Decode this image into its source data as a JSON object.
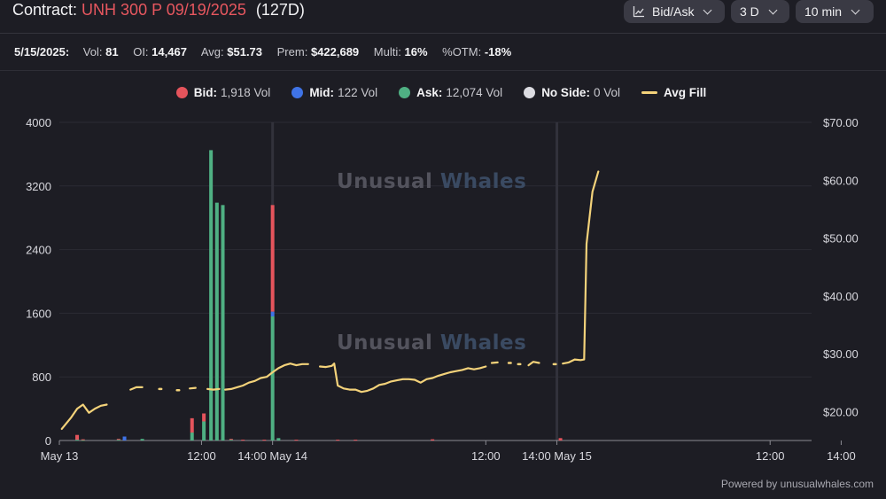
{
  "header": {
    "contract_label": "Contract:",
    "contract": "UNH 300 P 09/19/2025",
    "days": "(127D)",
    "controls": [
      {
        "label": "Bid/Ask",
        "icon": "chart-icon"
      },
      {
        "label": "3 D",
        "icon": ""
      },
      {
        "label": "10 min",
        "icon": ""
      }
    ]
  },
  "stats": {
    "date": "5/15/2025:",
    "items": [
      {
        "label": "Vol:",
        "value": "81"
      },
      {
        "label": "OI:",
        "value": "14,467"
      },
      {
        "label": "Avg:",
        "value": "$51.73"
      },
      {
        "label": "Prem:",
        "value": "$422,689"
      },
      {
        "label": "Multi:",
        "value": "16%"
      },
      {
        "label": "%OTM:",
        "value": "-18%"
      }
    ]
  },
  "legend": [
    {
      "name": "Bid:",
      "value": "1,918 Vol",
      "color": "#e5545c",
      "shape": "dot"
    },
    {
      "name": "Mid:",
      "value": "122 Vol",
      "color": "#3f73e6",
      "shape": "dot"
    },
    {
      "name": "Ask:",
      "value": "12,074 Vol",
      "color": "#4fb083",
      "shape": "dot"
    },
    {
      "name": "No Side:",
      "value": "0 Vol",
      "color": "#dcdce2",
      "shape": "dot"
    },
    {
      "name": "Avg Fill",
      "value": "",
      "color": "#f3d27a",
      "shape": "line"
    }
  ],
  "watermark": {
    "word1": "Unusual",
    "word2": "Whales"
  },
  "footer": "Powered by unusualwhales.com",
  "chart_data": {
    "type": "bar",
    "colors": {
      "bid": "#e5545c",
      "mid": "#3f73e6",
      "ask": "#4fb083",
      "fill": "#f3d27a"
    },
    "x_range_hours": [
      0,
      63.5
    ],
    "x_ticks": [
      {
        "h": 0,
        "label": "May 13"
      },
      {
        "h": 12,
        "label": "12:00"
      },
      {
        "h": 18,
        "label": "14:00 May 14"
      },
      {
        "h": 36,
        "label": "12:00"
      },
      {
        "h": 42,
        "label": "14:00 May 15"
      },
      {
        "h": 60,
        "label": "12:00"
      },
      {
        "h": 66,
        "label": "14:00"
      }
    ],
    "y_left": {
      "min": 0,
      "max": 4000,
      "ticks": [
        0,
        800,
        1600,
        2400,
        3200,
        4000
      ]
    },
    "y_right": {
      "min": 15,
      "max": 70,
      "ticks": [
        20,
        30,
        40,
        50,
        60,
        70
      ],
      "tick_labels": [
        "$20.00",
        "$30.00",
        "$40.00",
        "$50.00",
        "$60.00",
        "$70.00"
      ]
    },
    "day_markers_h": [
      18,
      42
    ],
    "bars": [
      {
        "h": 1.5,
        "bid": 60,
        "mid": 0,
        "ask": 10
      },
      {
        "h": 2.0,
        "bid": 10,
        "mid": 0,
        "ask": 5
      },
      {
        "h": 5.0,
        "bid": 10,
        "mid": 0,
        "ask": 10
      },
      {
        "h": 5.5,
        "bid": 0,
        "mid": 50,
        "ask": 0
      },
      {
        "h": 7.0,
        "bid": 0,
        "mid": 0,
        "ask": 20
      },
      {
        "h": 11.2,
        "bid": 180,
        "mid": 0,
        "ask": 100
      },
      {
        "h": 12.2,
        "bid": 100,
        "mid": 0,
        "ask": 240
      },
      {
        "h": 12.8,
        "bid": 0,
        "mid": 0,
        "ask": 3650
      },
      {
        "h": 13.3,
        "bid": 0,
        "mid": 0,
        "ask": 2990
      },
      {
        "h": 13.8,
        "bid": 0,
        "mid": 0,
        "ask": 2960
      },
      {
        "h": 14.5,
        "bid": 10,
        "mid": 0,
        "ask": 10
      },
      {
        "h": 15.5,
        "bid": 10,
        "mid": 0,
        "ask": 0
      },
      {
        "h": 17.3,
        "bid": 10,
        "mid": 0,
        "ask": 0
      },
      {
        "h": 18.0,
        "bid": 1340,
        "mid": 60,
        "ask": 1560
      },
      {
        "h": 18.5,
        "bid": 0,
        "mid": 0,
        "ask": 30
      },
      {
        "h": 20.0,
        "bid": 10,
        "mid": 0,
        "ask": 0
      },
      {
        "h": 23.5,
        "bid": 10,
        "mid": 0,
        "ask": 0
      },
      {
        "h": 25.0,
        "bid": 10,
        "mid": 0,
        "ask": 0
      },
      {
        "h": 31.5,
        "bid": 15,
        "mid": 0,
        "ask": 0
      },
      {
        "h": 42.3,
        "bid": 30,
        "mid": 0,
        "ask": 0
      }
    ],
    "avg_fill": [
      [
        [
          0.2,
          17.0
        ],
        [
          1.0,
          19.0
        ],
        [
          1.5,
          20.5
        ],
        [
          2.0,
          21.2
        ],
        [
          2.5,
          19.8
        ],
        [
          3.0,
          20.5
        ],
        [
          3.5,
          21.0
        ],
        [
          4.0,
          21.2
        ]
      ],
      [
        [
          6.0,
          23.8
        ],
        [
          6.5,
          24.2
        ],
        [
          7.0,
          24.2
        ]
      ],
      [
        [
          8.5,
          23.9
        ]
      ],
      [
        [
          10.0,
          23.7
        ]
      ],
      [
        [
          11.0,
          24.0
        ],
        [
          11.5,
          24.1
        ]
      ],
      [
        [
          12.5,
          23.9
        ],
        [
          13.0,
          23.8
        ],
        [
          13.5,
          23.9
        ]
      ],
      [
        [
          14.0,
          23.8
        ],
        [
          14.5,
          23.9
        ],
        [
          15.0,
          24.2
        ],
        [
          15.5,
          24.5
        ],
        [
          16.0,
          25.0
        ],
        [
          16.5,
          25.3
        ],
        [
          17.0,
          25.8
        ],
        [
          17.5,
          26.0
        ],
        [
          18.0,
          26.8
        ],
        [
          18.5,
          27.5
        ],
        [
          19.0,
          28.0
        ],
        [
          19.5,
          28.3
        ],
        [
          20.0,
          28.0
        ],
        [
          20.5,
          28.2
        ],
        [
          21.0,
          28.2
        ]
      ],
      [
        [
          22.0,
          27.8
        ],
        [
          22.5,
          27.7
        ],
        [
          23.0,
          27.9
        ],
        [
          23.2,
          28.3
        ],
        [
          23.5,
          24.5
        ],
        [
          24.0,
          24.0
        ],
        [
          24.5,
          23.8
        ],
        [
          25.0,
          23.8
        ],
        [
          25.5,
          23.4
        ],
        [
          26.0,
          23.6
        ],
        [
          26.5,
          24.0
        ],
        [
          27.0,
          24.6
        ],
        [
          27.5,
          24.8
        ],
        [
          28.0,
          25.2
        ],
        [
          28.5,
          25.4
        ],
        [
          29.0,
          25.6
        ],
        [
          29.5,
          25.6
        ],
        [
          30.0,
          25.5
        ],
        [
          30.5,
          25.0
        ],
        [
          31.0,
          25.6
        ],
        [
          31.5,
          25.8
        ],
        [
          32.0,
          26.2
        ],
        [
          32.5,
          26.5
        ],
        [
          33.0,
          26.8
        ],
        [
          33.5,
          27.0
        ],
        [
          34.0,
          27.2
        ],
        [
          34.5,
          27.5
        ],
        [
          35.0,
          27.3
        ],
        [
          35.5,
          27.5
        ],
        [
          36.0,
          27.8
        ]
      ],
      [
        [
          36.5,
          28.4
        ],
        [
          37.0,
          28.5
        ]
      ],
      [
        [
          38.0,
          28.4
        ]
      ],
      [
        [
          38.8,
          28.2
        ]
      ],
      [
        [
          39.6,
          28.0
        ],
        [
          40.0,
          28.6
        ],
        [
          40.5,
          28.4
        ]
      ],
      [
        [
          41.8,
          28.2
        ]
      ],
      [
        [
          42.5,
          28.3
        ],
        [
          43.0,
          28.5
        ],
        [
          43.5,
          29.0
        ],
        [
          44.0,
          28.9
        ],
        [
          44.3,
          29.0
        ],
        [
          44.5,
          49.0
        ],
        [
          45.0,
          58.0
        ],
        [
          45.5,
          61.5
        ]
      ]
    ]
  }
}
